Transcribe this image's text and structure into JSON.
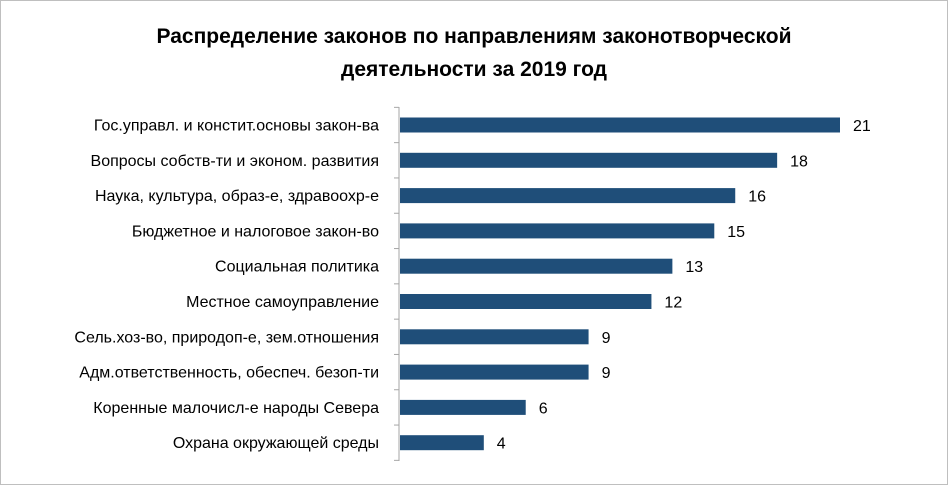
{
  "chart_data": {
    "type": "bar",
    "orientation": "horizontal",
    "title_lines": [
      "Распределение законов по направлениям законотворческой",
      "деятельности за 2019 год"
    ],
    "categories": [
      "Гос.управл. и констит.основы закон-ва",
      "Вопросы собств-ти и эконом. развития",
      "Наука, культура, образ-е, здравоохр-е",
      "Бюджетное и налоговое закон-во",
      "Социальная политика",
      "Местное самоуправление",
      "Сель.хоз-во, природоп-е, зем.отношения",
      "Адм.ответственность, обеспеч. безоп-ти",
      "Коренные малочисл-е народы Севера",
      "Охрана окружающей среды"
    ],
    "values": [
      21,
      18,
      16,
      15,
      13,
      12,
      9,
      9,
      6,
      4
    ],
    "xlim": [
      0,
      21
    ],
    "bar_color": "#1f4e79",
    "axis_color": "#a6a6a6",
    "data_labels": true,
    "grid": false,
    "legend": "none"
  }
}
